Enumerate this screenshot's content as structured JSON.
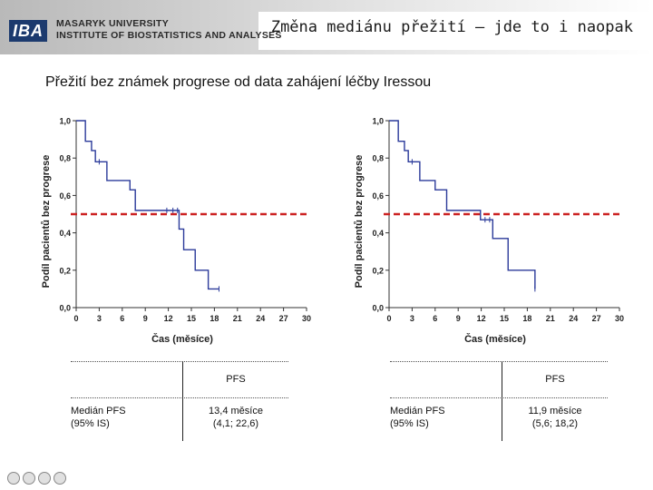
{
  "header": {
    "logo_mark": "IBA",
    "institution_line1": "MASARYK UNIVERSITY",
    "institution_line2": "INSTITUTE OF BIOSTATISTICS AND ANALYSES",
    "title": "Změna mediánu přežití – jde to i naopak"
  },
  "subtitle": "Přežití bez známek progrese od data zahájení léčby Iressou",
  "chart_data": [
    {
      "type": "line",
      "step": true,
      "xlabel": "Čas (měsíce)",
      "ylabel": "Podíl pacientů bez progrese",
      "xlim": [
        0,
        30
      ],
      "ylim": [
        0,
        1
      ],
      "x_ticks": [
        0,
        3,
        6,
        9,
        12,
        15,
        18,
        21,
        24,
        27,
        30
      ],
      "y_ticks": [
        0,
        0.2,
        0.4,
        0.6,
        0.8,
        1.0
      ],
      "y_tick_labels": [
        "0,0",
        "0,2",
        "0,4",
        "0,6",
        "0,8",
        "1,0"
      ],
      "reference_line_y": 0.5,
      "reference_line_color": "#cc2222",
      "series_color": "#2b3a9a",
      "series": [
        {
          "x": [
            0,
            1,
            1.2,
            2,
            2.5,
            4,
            7,
            7.7,
            13.4,
            14,
            15.5,
            17.2,
            18.6
          ],
          "y": [
            1.0,
            1.0,
            0.89,
            0.84,
            0.78,
            0.68,
            0.63,
            0.52,
            0.42,
            0.31,
            0.2,
            0.1,
            0.1
          ]
        }
      ],
      "censor_marks": [
        [
          3,
          0.78
        ],
        [
          11.8,
          0.52
        ],
        [
          12.6,
          0.52
        ],
        [
          13.2,
          0.52
        ],
        [
          18.6,
          0.1
        ]
      ]
    },
    {
      "type": "line",
      "step": true,
      "xlabel": "Čas (měsíce)",
      "ylabel": "Podíl pacientů bez progrese",
      "xlim": [
        0,
        30
      ],
      "ylim": [
        0,
        1
      ],
      "x_ticks": [
        0,
        3,
        6,
        9,
        12,
        15,
        18,
        21,
        24,
        27,
        30
      ],
      "y_ticks": [
        0,
        0.2,
        0.4,
        0.6,
        0.8,
        1.0
      ],
      "y_tick_labels": [
        "0,0",
        "0,2",
        "0,4",
        "0,6",
        "0,8",
        "1,0"
      ],
      "reference_line_y": 0.5,
      "reference_line_color": "#cc2222",
      "series_color": "#2b3a9a",
      "series": [
        {
          "x": [
            0,
            1,
            1.2,
            2,
            2.5,
            4,
            6,
            7.5,
            11.9,
            13.5,
            15.5,
            19
          ],
          "y": [
            1.0,
            1.0,
            0.89,
            0.84,
            0.78,
            0.68,
            0.63,
            0.52,
            0.47,
            0.37,
            0.2,
            0.1
          ]
        }
      ],
      "censor_marks": [
        [
          3,
          0.78
        ],
        [
          12.5,
          0.47
        ],
        [
          13.1,
          0.47
        ],
        [
          19,
          0.1
        ]
      ]
    }
  ],
  "tables": [
    {
      "col_header": "PFS",
      "row_label_line1": "Medián PFS",
      "row_label_line2": "(95% IS)",
      "value_line1": "13,4 měsíce",
      "value_line2": "(4,1; 22,6)"
    },
    {
      "col_header": "PFS",
      "row_label_line1": "Medián PFS",
      "row_label_line2": "(95% IS)",
      "value_line1": "11,9 měsíce",
      "value_line2": "(5,6; 18,2)"
    }
  ],
  "footer_icons": [
    "university-seal-icon-1",
    "university-seal-icon-2",
    "university-seal-icon-3",
    "university-seal-icon-4"
  ]
}
